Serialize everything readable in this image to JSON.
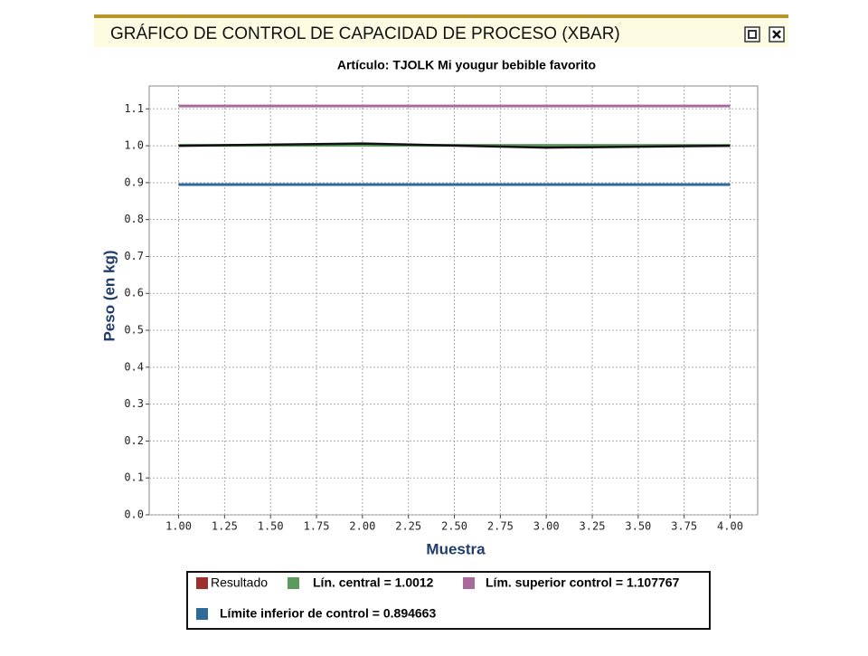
{
  "window": {
    "title": "GRÁFICO DE CONTROL DE CAPACIDAD DE PROCESO (XBAR)"
  },
  "chart_data": {
    "type": "line",
    "title": "Artículo:  TJOLK Mi yougur bebible favorito",
    "x_label": "Muestra",
    "y_label": "Peso (en kg)",
    "x": [
      1,
      2,
      3,
      4
    ],
    "series": [
      {
        "name": "Resultado",
        "color": "#9e2f2f",
        "values": [
          1.0,
          1.006,
          0.995,
          1.0
        ]
      },
      {
        "name": "Lín. central = 1.0012",
        "color": "#5d9a5d",
        "values": [
          1.0012,
          1.0012,
          1.0012,
          1.0012
        ]
      },
      {
        "name": "Lím. superior control = 1.107767",
        "color": "#a86a9a",
        "values": [
          1.107767,
          1.107767,
          1.107767,
          1.107767
        ]
      },
      {
        "name": "Límite inferior de control = 0.894663",
        "color": "#2f6a98",
        "values": [
          0.894663,
          0.894663,
          0.894663,
          0.894663
        ]
      }
    ],
    "xlim": [
      0.84,
      4.15
    ],
    "xticks": [
      {
        "value": 1,
        "label": "1.00"
      },
      1.25,
      {
        "value": 1.5,
        "label": "1.50"
      },
      1.75,
      {
        "value": 2,
        "label": "2.00"
      },
      2.25,
      {
        "value": 2.5,
        "label": "2.50"
      },
      2.75,
      {
        "value": 3,
        "label": "3.00"
      },
      3.25,
      {
        "value": 3.5,
        "label": "3.50"
      },
      3.75,
      {
        "value": 4,
        "label": "4.00"
      }
    ],
    "ylim": [
      0,
      1.162
    ],
    "yticks": [
      {
        "value": 0,
        "label": "0.0"
      },
      0.1,
      0.2,
      0.3,
      0.4,
      0.5,
      0.6,
      0.7,
      0.8,
      0.9,
      {
        "value": 1,
        "label": "1.0"
      },
      1.1
    ],
    "grid": true
  }
}
